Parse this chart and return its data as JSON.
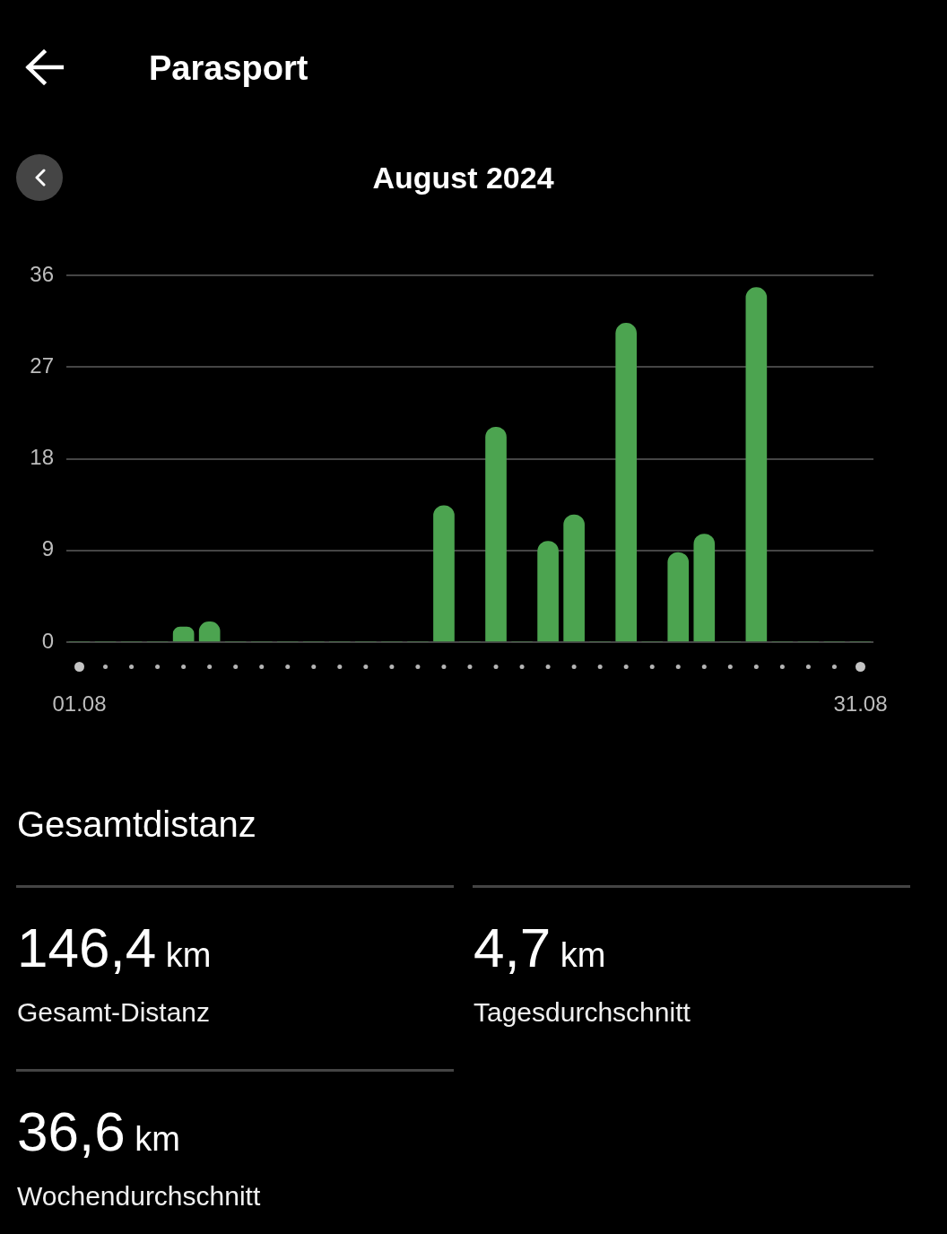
{
  "chart_data": {
    "type": "bar",
    "title": "Parasport",
    "subtitle": "August 2024",
    "categories": [
      "01.08",
      null,
      null,
      null,
      null,
      null,
      null,
      null,
      null,
      null,
      null,
      null,
      null,
      null,
      null,
      null,
      null,
      null,
      null,
      null,
      null,
      null,
      null,
      null,
      null,
      null,
      null,
      null,
      null,
      null,
      "31.08"
    ],
    "values": [
      0,
      0,
      0,
      0,
      1.5,
      2.0,
      0,
      0,
      0,
      0,
      0,
      0,
      0,
      0,
      13.4,
      0,
      21.1,
      0,
      9.9,
      12.5,
      0,
      31.3,
      0,
      8.8,
      10.6,
      0,
      34.8,
      0,
      0,
      0,
      0
    ],
    "color": "#4ca450",
    "ylim": [
      0,
      36
    ],
    "yticks": [
      0,
      9,
      18,
      27,
      36
    ],
    "grid": "y",
    "annotations": [
      "Gesamtdistanz",
      "146,4 km",
      "Gesamt-Distanz",
      "4,7 km",
      "Tagesdurchschnitt",
      "36,6 km",
      "Wochendurchschnitt"
    ]
  }
}
